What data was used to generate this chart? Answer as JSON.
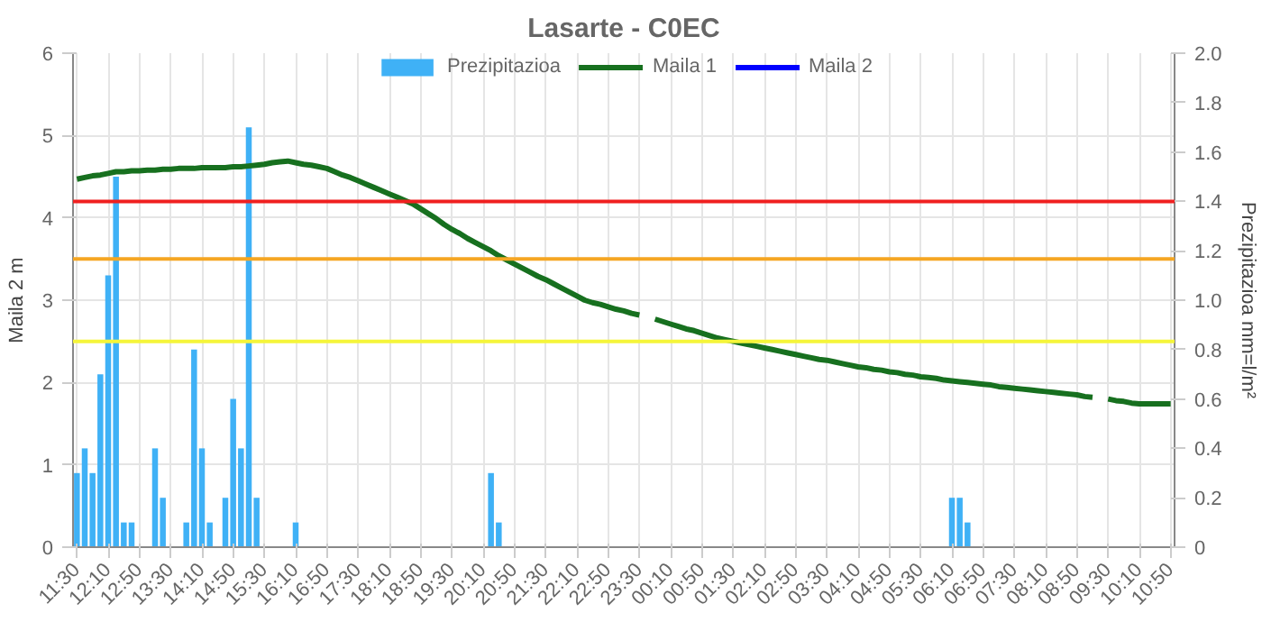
{
  "chart_data": {
    "type": "bar",
    "title": "Lasarte - C0EC",
    "ylabel": "Maila 2 m",
    "y2label": "Prezipitazioa mm=l/m²",
    "categories": [
      "11:30",
      null,
      null,
      null,
      "12:10",
      null,
      null,
      null,
      "12:50",
      null,
      null,
      null,
      "13:30",
      null,
      null,
      null,
      "14:10",
      null,
      null,
      null,
      "14:50",
      null,
      null,
      null,
      "15:30",
      null,
      null,
      null,
      "16:10",
      null,
      null,
      null,
      "16:50",
      null,
      null,
      null,
      "17:30",
      null,
      null,
      null,
      "18:10",
      null,
      null,
      null,
      "18:50",
      null,
      null,
      null,
      "19:30",
      null,
      null,
      null,
      "20:10",
      null,
      null,
      null,
      "20:50",
      null,
      null,
      null,
      "21:30",
      null,
      null,
      null,
      "22:10",
      null,
      null,
      null,
      "22:50",
      null,
      null,
      null,
      "23:30",
      null,
      null,
      null,
      "00:10",
      null,
      null,
      null,
      "00:50",
      null,
      null,
      null,
      "01:30",
      null,
      null,
      null,
      "02:10",
      null,
      null,
      null,
      "02:50",
      null,
      null,
      null,
      "03:30",
      null,
      null,
      null,
      "04:10",
      null,
      null,
      null,
      "04:50",
      null,
      null,
      null,
      "05:30",
      null,
      null,
      null,
      "06:10",
      null,
      null,
      null,
      "06:50",
      null,
      null,
      null,
      "07:30",
      null,
      null,
      null,
      "08:10",
      null,
      null,
      null,
      "08:50",
      null,
      null,
      null,
      "09:30",
      null,
      null,
      null,
      "10:10",
      null,
      null,
      null,
      "10:50"
    ],
    "series": [
      {
        "name": "Prezipitazioa",
        "axis": "y2",
        "color": "#3fb1f6",
        "values": [
          0.3,
          0.4,
          0.3,
          0.7,
          1.1,
          1.5,
          0.1,
          0.1,
          0,
          0,
          0.4,
          0.2,
          0,
          0,
          0.1,
          0.8,
          0.4,
          0.1,
          0,
          0.2,
          0.6,
          0.4,
          1.7,
          0.2,
          0,
          0,
          0,
          0,
          0.1,
          0,
          0,
          0,
          0,
          0,
          0,
          0,
          0,
          0,
          0,
          0,
          0,
          0,
          0,
          0,
          0,
          0,
          0,
          0,
          0,
          0,
          0,
          0,
          0,
          0.3,
          0.1,
          0,
          0,
          0,
          0,
          0,
          0,
          0,
          0,
          0,
          0,
          0,
          0,
          0,
          0,
          0,
          0,
          0,
          0,
          0,
          0,
          0,
          0,
          0,
          0,
          0,
          0,
          0,
          0,
          0,
          0,
          0,
          0,
          0,
          0,
          0,
          0,
          0,
          0,
          0,
          0,
          0,
          0,
          0,
          0,
          0,
          0,
          0,
          0,
          0,
          0,
          0,
          0,
          0,
          0,
          0,
          0,
          0,
          0.2,
          0.2,
          0.1,
          0,
          0,
          0,
          0,
          0,
          0,
          0,
          0,
          0,
          0,
          0,
          0,
          0,
          0,
          0,
          0,
          0,
          0,
          0,
          0,
          0,
          0,
          0,
          0,
          0,
          0
        ]
      },
      {
        "name": "Maila 1",
        "type": "line",
        "color": "#17701f",
        "values": [
          4.47,
          4.49,
          4.51,
          4.52,
          4.54,
          4.56,
          4.56,
          4.57,
          4.57,
          4.58,
          4.58,
          4.59,
          4.59,
          4.6,
          4.6,
          4.6,
          4.61,
          4.61,
          4.61,
          4.61,
          4.62,
          4.62,
          4.63,
          4.64,
          4.65,
          4.67,
          4.68,
          4.69,
          4.67,
          4.65,
          4.64,
          4.62,
          4.6,
          4.56,
          4.52,
          4.49,
          4.45,
          4.41,
          4.37,
          4.33,
          4.29,
          4.25,
          4.21,
          4.17,
          4.11,
          4.05,
          3.99,
          3.92,
          3.86,
          3.81,
          3.75,
          3.7,
          3.65,
          3.6,
          3.54,
          3.49,
          3.44,
          3.39,
          3.34,
          3.29,
          3.25,
          3.2,
          3.15,
          3.1,
          3.05,
          3.0,
          2.97,
          2.95,
          2.92,
          2.89,
          2.87,
          2.84,
          2.82,
          null,
          2.77,
          2.74,
          2.71,
          2.68,
          2.65,
          2.63,
          2.6,
          2.57,
          2.54,
          2.52,
          2.5,
          2.48,
          2.46,
          2.44,
          2.42,
          2.4,
          2.38,
          2.36,
          2.34,
          2.32,
          2.3,
          2.28,
          2.27,
          2.25,
          2.23,
          2.21,
          2.19,
          2.18,
          2.16,
          2.15,
          2.13,
          2.12,
          2.1,
          2.09,
          2.07,
          2.06,
          2.05,
          2.03,
          2.02,
          2.01,
          2.0,
          1.99,
          1.98,
          1.97,
          1.95,
          1.94,
          1.93,
          1.92,
          1.91,
          1.9,
          1.89,
          1.88,
          1.87,
          1.86,
          1.85,
          1.83,
          1.82,
          null,
          1.8,
          1.78,
          1.77,
          1.75,
          1.74,
          1.74,
          1.74,
          1.74,
          1.74
        ]
      },
      {
        "name": "Maila 2",
        "type": "line",
        "color": "#0000ff",
        "values": [
          null,
          null,
          null,
          null,
          null,
          null,
          null,
          null,
          null,
          null,
          null,
          null,
          null,
          null,
          null,
          null,
          null,
          null,
          null,
          null,
          null,
          null,
          null,
          null,
          null,
          null,
          null,
          null,
          null,
          null,
          null,
          null,
          null,
          null,
          null,
          null,
          null,
          null,
          null,
          null,
          null,
          null,
          null,
          null,
          null,
          null,
          null,
          null,
          null,
          null,
          null,
          null,
          null,
          null,
          null,
          null,
          null,
          null,
          null,
          null,
          null,
          null,
          null,
          null,
          null,
          null,
          null,
          null,
          null,
          null,
          null,
          null,
          null,
          null,
          null,
          null,
          null,
          null,
          null,
          null,
          null,
          null,
          null,
          null,
          null,
          null,
          null,
          null,
          null,
          null,
          null,
          null,
          null,
          null,
          null,
          null,
          null,
          null,
          null,
          null,
          null,
          null,
          null,
          null,
          null,
          null,
          null,
          null,
          null,
          null,
          null,
          null,
          null,
          null,
          null,
          null,
          null,
          null,
          null,
          null,
          null,
          null,
          null,
          null,
          null,
          null,
          null,
          null,
          null,
          null,
          null,
          null,
          null,
          null,
          null,
          null,
          null,
          null,
          null,
          null,
          null
        ]
      }
    ],
    "ylim": [
      0,
      6
    ],
    "yticks": [
      0,
      1,
      2,
      3,
      4,
      5,
      6
    ],
    "y2lim": [
      0,
      2.0
    ],
    "y2ticks": [
      0,
      {
        "value": 0.2,
        "label": "0.2"
      },
      {
        "value": 0.4,
        "label": "0.4"
      },
      {
        "value": 0.6,
        "label": "0.6"
      },
      {
        "value": 0.8,
        "label": "0.8"
      },
      {
        "value": 1.0,
        "label": "1.0"
      },
      {
        "value": 1.2,
        "label": "1.2"
      },
      {
        "value": 1.4,
        "label": "1.4"
      },
      {
        "value": 1.6,
        "label": "1.6"
      },
      {
        "value": 1.8,
        "label": "1.8"
      },
      {
        "value": 2.0,
        "label": "2.0"
      }
    ],
    "ref_lines": [
      {
        "axis": "y",
        "value": 4.2,
        "color": "#f02020"
      },
      {
        "axis": "y",
        "value": 3.5,
        "color": "#f5a623"
      },
      {
        "axis": "y",
        "value": 2.5,
        "color": "#f5f53a"
      }
    ],
    "grid": true,
    "legend": "top"
  }
}
